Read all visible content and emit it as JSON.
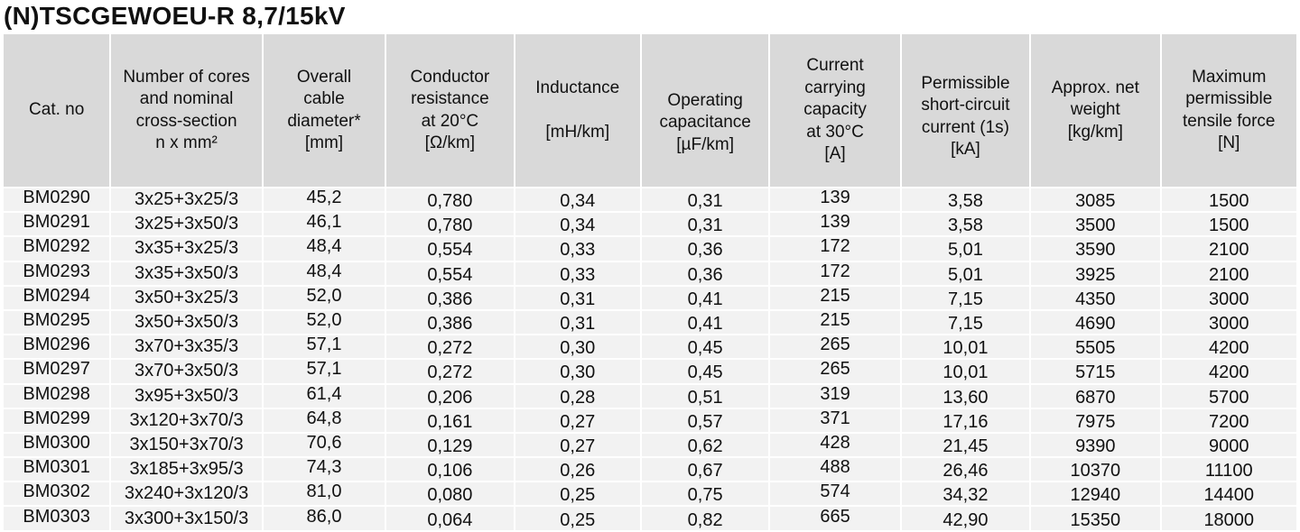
{
  "title": "(N)TSCGEWOEU-R 8,7/15kV",
  "headers": [
    [
      "Cat. no"
    ],
    [
      "Number of cores",
      "and nominal",
      "cross-section",
      "n x mm²"
    ],
    [
      "Overall",
      "cable",
      "diameter*",
      "[mm]"
    ],
    [
      "Conductor",
      "resistance",
      "at 20°C",
      "[Ω/km]"
    ],
    [
      "Inductance",
      "",
      "[mH/km]"
    ],
    [
      "Operating",
      "capacitance",
      "[µF/km]"
    ],
    [
      "Current",
      "carrying",
      "capacity",
      "at 30°C",
      "[A]"
    ],
    [
      "Permissible",
      "short-circuit",
      "current (1s)",
      "[kA]"
    ],
    [
      "Approx. net",
      "weight",
      "[kg/km]"
    ],
    [
      "Maximum",
      "permissible",
      "tensile force",
      "[N]"
    ]
  ],
  "rows": [
    [
      "BM0290",
      "3x25+3x25/3",
      "45,2",
      "0,780",
      "0,34",
      "0,31",
      "139",
      "3,58",
      "3085",
      "1500"
    ],
    [
      "BM0291",
      "3x25+3x50/3",
      "46,1",
      "0,780",
      "0,34",
      "0,31",
      "139",
      "3,58",
      "3500",
      "1500"
    ],
    [
      "BM0292",
      "3x35+3x25/3",
      "48,4",
      "0,554",
      "0,33",
      "0,36",
      "172",
      "5,01",
      "3590",
      "2100"
    ],
    [
      "BM0293",
      "3x35+3x50/3",
      "48,4",
      "0,554",
      "0,33",
      "0,36",
      "172",
      "5,01",
      "3925",
      "2100"
    ],
    [
      "BM0294",
      "3x50+3x25/3",
      "52,0",
      "0,386",
      "0,31",
      "0,41",
      "215",
      "7,15",
      "4350",
      "3000"
    ],
    [
      "BM0295",
      "3x50+3x50/3",
      "52,0",
      "0,386",
      "0,31",
      "0,41",
      "215",
      "7,15",
      "4690",
      "3000"
    ],
    [
      "BM0296",
      "3x70+3x35/3",
      "57,1",
      "0,272",
      "0,30",
      "0,45",
      "265",
      "10,01",
      "5505",
      "4200"
    ],
    [
      "BM0297",
      "3x70+3x50/3",
      "57,1",
      "0,272",
      "0,30",
      "0,45",
      "265",
      "10,01",
      "5715",
      "4200"
    ],
    [
      "BM0298",
      "3x95+3x50/3",
      "61,4",
      "0,206",
      "0,28",
      "0,51",
      "319",
      "13,60",
      "6870",
      "5700"
    ],
    [
      "BM0299",
      "3x120+3x70/3",
      "64,8",
      "0,161",
      "0,27",
      "0,57",
      "371",
      "17,16",
      "7975",
      "7200"
    ],
    [
      "BM0300",
      "3x150+3x70/3",
      "70,6",
      "0,129",
      "0,27",
      "0,62",
      "428",
      "21,45",
      "9390",
      "9000"
    ],
    [
      "BM0301",
      "3x185+3x95/3",
      "74,3",
      "0,106",
      "0,26",
      "0,67",
      "488",
      "26,46",
      "10370",
      "11100"
    ],
    [
      "BM0302",
      "3x240+3x120/3",
      "81,0",
      "0,080",
      "0,25",
      "0,75",
      "574",
      "34,32",
      "12940",
      "14400"
    ],
    [
      "BM0303",
      "3x300+3x150/3",
      "86,0",
      "0,064",
      "0,25",
      "0,82",
      "665",
      "42,90",
      "15350",
      "18000"
    ]
  ]
}
